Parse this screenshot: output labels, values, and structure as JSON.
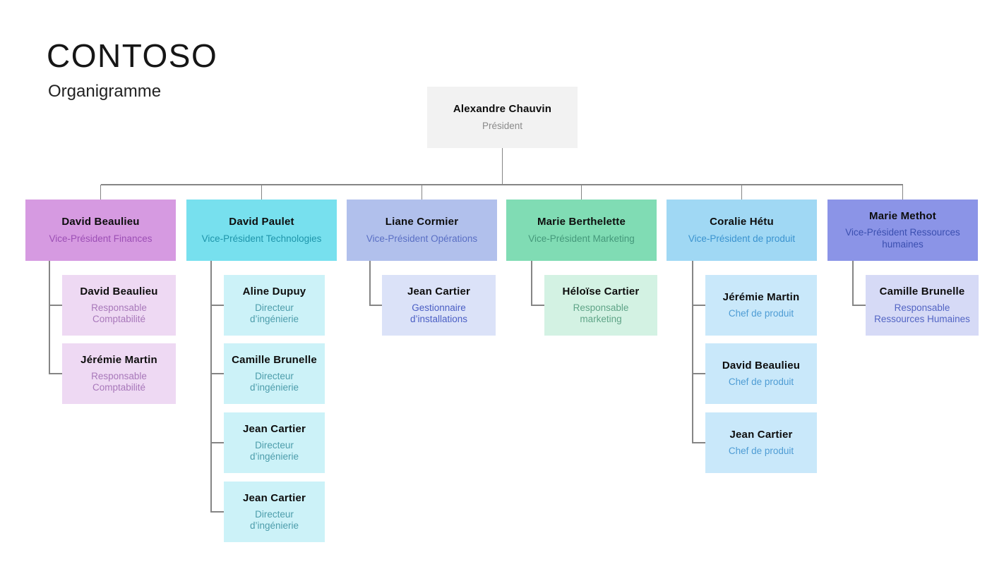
{
  "header": {
    "brand": "CONTOSO",
    "subtitle": "Organigramme"
  },
  "chart": {
    "type": "org-chart",
    "root": {
      "name": "Alexandre Chauvin",
      "title": "Président",
      "bg": "#f2f2f2",
      "title_color": "#8a8a8a"
    },
    "columns": [
      {
        "vp": {
          "name": "David Beaulieu",
          "title": "Vice-Président Finances"
        },
        "vp_bg": "#d69ae1",
        "vp_title_color": "#9c4fb5",
        "child_bg": "#eed9f3",
        "child_title_color": "#a878ba",
        "children": [
          {
            "name": "David Beaulieu",
            "title": "Responsable Comptabilité"
          },
          {
            "name": "Jérémie Martin",
            "title": "Responsable Comptabilité"
          }
        ]
      },
      {
        "vp": {
          "name": "David Paulet",
          "title": "Vice-Président Technologies"
        },
        "vp_bg": "#77e0ee",
        "vp_title_color": "#1f95ab",
        "child_bg": "#ccf2f8",
        "child_title_color": "#4d9dab",
        "children": [
          {
            "name": "Aline Dupuy",
            "title": "Directeur d’ingénierie"
          },
          {
            "name": "Camille Brunelle",
            "title": "Directeur d’ingénierie"
          },
          {
            "name": "Jean Cartier",
            "title": "Directeur d’ingénierie"
          },
          {
            "name": "Jean Cartier",
            "title": "Directeur d’ingénierie"
          }
        ]
      },
      {
        "vp": {
          "name": "Liane Cormier",
          "title": "Vice-Président Opérations"
        },
        "vp_bg": "#b1c0ec",
        "vp_title_color": "#5a6fc4",
        "child_bg": "#dbe2f8",
        "child_title_color": "#4a5ec4",
        "children": [
          {
            "name": "Jean Cartier",
            "title": "Gestionnaire d’installations"
          }
        ]
      },
      {
        "vp": {
          "name": "Marie Berthelette",
          "title": "Vice-Président Marketing"
        },
        "vp_bg": "#80dcb4",
        "vp_title_color": "#45997b",
        "child_bg": "#d3f2e3",
        "child_title_color": "#5fa487",
        "children": [
          {
            "name": "Héloïse Cartier",
            "title": "Responsable marketing"
          }
        ]
      },
      {
        "vp": {
          "name": "Coralie Hétu",
          "title": "Vice-Président de produit"
        },
        "vp_bg": "#a0d8f4",
        "vp_title_color": "#3b93cf",
        "child_bg": "#c9e8fa",
        "child_title_color": "#4e9cd4",
        "children": [
          {
            "name": "Jérémie Martin",
            "title": "Chef de produit"
          },
          {
            "name": "David Beaulieu",
            "title": "Chef de produit"
          },
          {
            "name": "Jean Cartier",
            "title": "Chef de produit"
          }
        ]
      },
      {
        "vp": {
          "name": "Marie Methot",
          "title": "Vice-Président Ressources humaines"
        },
        "vp_bg": "#8b94e7",
        "vp_title_color": "#3b4fb0",
        "child_bg": "#d6daf6",
        "child_title_color": "#5365c4",
        "children": [
          {
            "name": "Camille Brunelle",
            "title": "Responsable Ressources Humaines"
          }
        ]
      }
    ]
  }
}
